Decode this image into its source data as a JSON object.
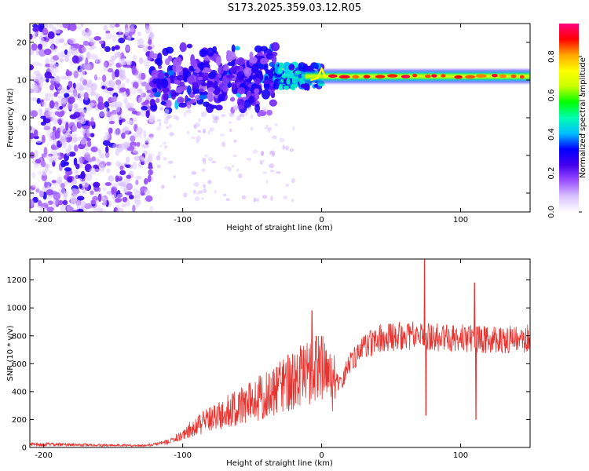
{
  "title": "S173.2025.359.03.12.R05",
  "chart_data": [
    {
      "type": "heatmap",
      "name": "spectrogram",
      "xlabel": "Height of straight line (km)",
      "ylabel": "Frequency (Hz)",
      "xlim": [
        -210,
        150
      ],
      "ylim": [
        -25,
        25
      ],
      "xticks": [
        -200,
        -100,
        0,
        100
      ],
      "yticks": [
        -20,
        -10,
        0,
        10,
        20
      ],
      "colorbar": {
        "label": "Normalized spectral amplitude",
        "range": [
          0,
          0.97
        ],
        "ticks": [
          0.0,
          0.2,
          0.4,
          0.6,
          0.8
        ],
        "colormap": [
          "#ffffff",
          "#d9c2ff",
          "#9a4dff",
          "#4400ee",
          "#0000ff",
          "#00bfff",
          "#00ffb0",
          "#00ff00",
          "#c8ff00",
          "#ffff00",
          "#ffa500",
          "#ff0000",
          "#ff0080"
        ]
      },
      "features": [
        {
          "label": "noise cloud",
          "x_range": [
            -210,
            -122
          ],
          "freq_range": [
            -25,
            25
          ],
          "amplitude": 0.15
        },
        {
          "label": "scattered returns",
          "x_range": [
            -122,
            -33
          ],
          "freq_range": [
            3,
            17
          ],
          "amplitude": 0.3
        },
        {
          "label": "trace onset",
          "x_range": [
            -33,
            0
          ],
          "freq_range": [
            8,
            13
          ],
          "amplitude": 0.5
        },
        {
          "label": "steady trace",
          "x_range": [
            0,
            150
          ],
          "freq_range": [
            10,
            12
          ],
          "center_freq": 11,
          "amplitude": 0.9
        }
      ]
    },
    {
      "type": "line",
      "name": "snr",
      "xlabel": "Height of straight line (km)",
      "ylabel": "SNR (10 * v/v)",
      "xlim": [
        -210,
        150
      ],
      "ylim": [
        0,
        1350
      ],
      "xticks": [
        -200,
        -100,
        0,
        100
      ],
      "yticks": [
        0,
        200,
        400,
        600,
        800,
        1000,
        1200
      ],
      "color": "#e8332f",
      "series": [
        {
          "name": "SNR envelope",
          "x": [
            -210,
            -180,
            -150,
            -125,
            -110,
            -100,
            -90,
            -80,
            -70,
            -60,
            -50,
            -40,
            -30,
            -20,
            -10,
            0,
            8,
            14,
            20,
            30,
            40,
            60,
            80,
            100,
            120,
            150
          ],
          "y": [
            25,
            20,
            15,
            15,
            40,
            90,
            160,
            200,
            250,
            290,
            330,
            380,
            430,
            480,
            540,
            560,
            470,
            420,
            560,
            650,
            720,
            740,
            730,
            720,
            710,
            720
          ]
        }
      ],
      "spikes": [
        {
          "x": -7,
          "y": 980
        },
        {
          "x": 74,
          "y": 1350
        },
        {
          "x": 75,
          "y": 230
        },
        {
          "x": 110,
          "y": 1180
        },
        {
          "x": 111,
          "y": 200
        }
      ]
    }
  ]
}
